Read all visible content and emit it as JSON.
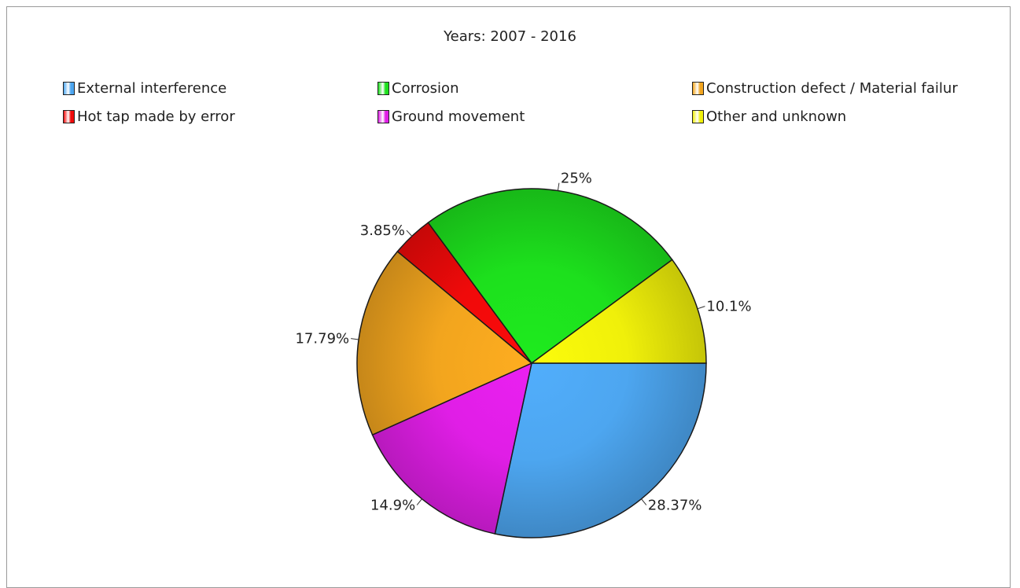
{
  "chart_data": {
    "type": "pie",
    "title": "Years: 2007 - 2016",
    "slices": [
      {
        "name": "External interference",
        "value": 28.37,
        "label": "28.37%",
        "color": "#4da6f0"
      },
      {
        "name": "Ground movement",
        "value": 14.9,
        "label": "14.9%",
        "color": "#e01ee6"
      },
      {
        "name": "Construction defect / Material failur",
        "value": 17.79,
        "label": "17.79%",
        "color": "#f2a51e"
      },
      {
        "name": "Hot tap made by error",
        "value": 3.85,
        "label": "3.85%",
        "color": "#f00a0a"
      },
      {
        "name": "Corrosion",
        "value": 25,
        "label": "25%",
        "color": "#1de01d"
      },
      {
        "name": "Other and unknown",
        "value": 10.1,
        "label": "10.1%",
        "color": "#f0f00a"
      }
    ],
    "legend_order": [
      "External interference",
      "Corrosion",
      "Construction defect / Material failur",
      "Hot tap made by error",
      "Ground movement",
      "Other and unknown"
    ],
    "legend_position": "top"
  }
}
